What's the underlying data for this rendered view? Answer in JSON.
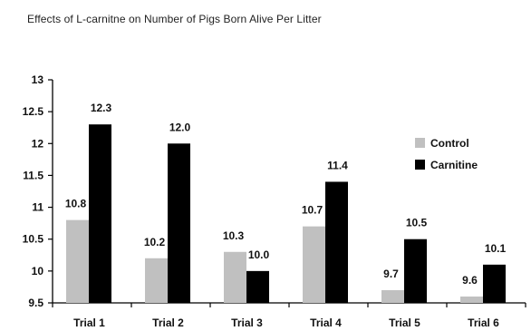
{
  "chart_data": {
    "type": "bar",
    "title": "Effects of L-carnitne on Number of Pigs Born Alive Per Litter",
    "categories": [
      "Trial 1",
      "Trial 2",
      "Trial 3",
      "Trial 4",
      "Trial 5",
      "Trial 6"
    ],
    "series": [
      {
        "name": "Control",
        "color": "#c0c0c0",
        "values": [
          10.8,
          10.2,
          10.3,
          10.7,
          9.7,
          9.6
        ],
        "labels": [
          "10.8",
          "10.2",
          "10.3",
          "10.7",
          "9.7",
          "9.6"
        ]
      },
      {
        "name": "Carnitine",
        "color": "#000000",
        "values": [
          12.3,
          12.0,
          10.0,
          11.4,
          10.5,
          10.1
        ],
        "labels": [
          "12.3",
          "12.0",
          "10.0",
          "11.4",
          "10.5",
          "10.1"
        ]
      }
    ],
    "xlabel": "",
    "ylabel": "",
    "ylim": [
      9.5,
      13
    ],
    "yticks": [
      9.5,
      10,
      10.5,
      11,
      11.5,
      12,
      12.5,
      13
    ],
    "ytick_labels": [
      "9.5",
      "10",
      "10.5",
      "11",
      "11.5",
      "12",
      "12.5",
      "13"
    ],
    "grid": false,
    "legend": "right"
  }
}
